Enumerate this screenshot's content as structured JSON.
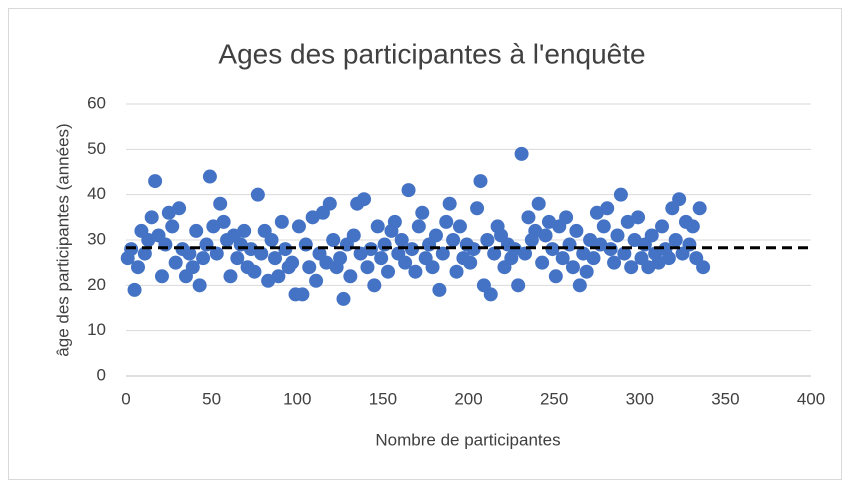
{
  "chart_data": {
    "type": "scatter",
    "title": "Ages des participantes à l'enquête",
    "x_label": "Nombre de participantes",
    "y_label": "âge des participantes (années)",
    "color": "#4472c4",
    "grid": true,
    "reference_line": 28.3,
    "xlim": [
      0,
      400
    ],
    "xticks": [
      0,
      50,
      100,
      150,
      200,
      250,
      300,
      350,
      400
    ],
    "ylim": [
      0,
      60
    ],
    "yticks": [
      0,
      10,
      20,
      30,
      40,
      50,
      60
    ],
    "x": [
      1,
      3,
      5,
      7,
      9,
      11,
      13,
      15,
      17,
      19,
      21,
      23,
      25,
      27,
      29,
      31,
      33,
      35,
      37,
      39,
      41,
      43,
      45,
      47,
      49,
      51,
      53,
      55,
      57,
      59,
      61,
      63,
      65,
      67,
      69,
      71,
      73,
      75,
      77,
      79,
      81,
      83,
      85,
      87,
      89,
      91,
      93,
      95,
      97,
      99,
      101,
      103,
      105,
      107,
      109,
      111,
      113,
      115,
      117,
      119,
      121,
      123,
      125,
      127,
      129,
      131,
      133,
      135,
      137,
      139,
      141,
      143,
      145,
      147,
      149,
      151,
      153,
      155,
      157,
      159,
      161,
      163,
      165,
      167,
      169,
      171,
      173,
      175,
      177,
      179,
      181,
      183,
      185,
      187,
      189,
      191,
      193,
      195,
      197,
      199,
      201,
      203,
      205,
      207,
      209,
      211,
      213,
      215,
      217,
      219,
      221,
      223,
      225,
      227,
      229,
      231,
      233,
      235,
      237,
      239,
      241,
      243,
      245,
      247,
      249,
      251,
      253,
      255,
      257,
      259,
      261,
      263,
      265,
      267,
      269,
      271,
      273,
      275,
      277,
      279,
      281,
      283,
      285,
      287,
      289,
      291,
      293,
      295,
      297,
      299,
      301,
      303,
      305,
      307,
      309,
      311,
      313,
      315,
      317,
      319,
      321,
      323,
      325,
      327,
      329,
      331,
      333,
      335,
      337
    ],
    "values": [
      26,
      28,
      19,
      24,
      32,
      27,
      30,
      35,
      43,
      31,
      22,
      29,
      36,
      33,
      25,
      37,
      28,
      22,
      27,
      24,
      32,
      20,
      26,
      29,
      44,
      33,
      27,
      38,
      34,
      30,
      22,
      31,
      26,
      29,
      32,
      24,
      28,
      23,
      40,
      27,
      32,
      21,
      30,
      26,
      22,
      34,
      28,
      24,
      25,
      18,
      33,
      18,
      29,
      24,
      35,
      21,
      27,
      36,
      25,
      38,
      30,
      24,
      26,
      17,
      29,
      22,
      31,
      38,
      27,
      39,
      24,
      28,
      20,
      33,
      26,
      29,
      23,
      32,
      34,
      27,
      30,
      25,
      41,
      28,
      23,
      33,
      36,
      26,
      29,
      24,
      31,
      19,
      27,
      34,
      38,
      30,
      23,
      33,
      26,
      29,
      25,
      28,
      37,
      43,
      20,
      30,
      18,
      27,
      33,
      31,
      24,
      29,
      26,
      28,
      20,
      49,
      27,
      35,
      30,
      32,
      38,
      25,
      31,
      34,
      28,
      22,
      33,
      26,
      35,
      29,
      24,
      32,
      20,
      27,
      23,
      30,
      26,
      36,
      29,
      33,
      37,
      28,
      25,
      31,
      40,
      27,
      34,
      24,
      30,
      35,
      26,
      29,
      24,
      31,
      27,
      25,
      33,
      28,
      26,
      37,
      30,
      39,
      27,
      34,
      29,
      33,
      26,
      37,
      24
    ]
  }
}
